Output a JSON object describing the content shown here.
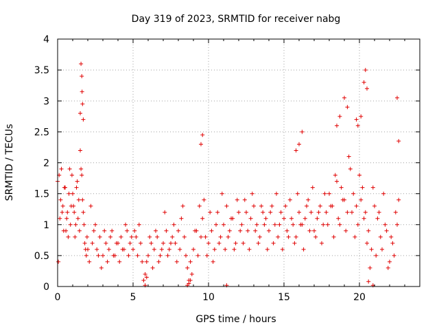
{
  "chart_data": {
    "type": "scatter",
    "title": "Day 319 of 2023, SRMTID for receiver nabg",
    "xlabel": "GPS time / hours",
    "ylabel": "SRMTID / TECUs",
    "xlim": [
      0,
      24
    ],
    "ylim": [
      0,
      4
    ],
    "xticks": [
      "0",
      "5",
      "10",
      "15",
      "20"
    ],
    "yticks": [
      "0",
      "0.5",
      "1",
      "1.5",
      "2",
      "2.5",
      "3",
      "3.5",
      "4"
    ],
    "grid": true,
    "marker": "+",
    "color": "#e00000",
    "x": [
      0.0,
      0.1,
      0.2,
      0.3,
      0.4,
      0.5,
      0.6,
      0.7,
      0.8,
      0.9,
      1.0,
      1.1,
      1.2,
      1.3,
      1.4,
      1.5,
      1.6,
      1.7,
      1.8,
      1.9,
      2.0,
      2.2,
      2.4,
      2.6,
      2.8,
      3.0,
      3.2,
      3.4,
      3.6,
      3.8,
      4.0,
      4.2,
      4.4,
      4.6,
      4.8,
      5.0,
      5.2,
      5.4,
      5.6,
      5.8,
      6.0,
      6.2,
      6.4,
      6.6,
      6.8,
      7.0,
      7.2,
      7.4,
      7.6,
      7.8,
      8.0,
      8.2,
      8.4,
      8.6,
      8.8,
      9.0,
      9.2,
      9.4,
      9.6,
      9.8,
      10.0,
      10.2,
      10.4,
      10.6,
      10.8,
      11.0,
      11.2,
      11.4,
      11.6,
      11.8,
      12.0,
      12.2,
      12.4,
      12.6,
      12.8,
      13.0,
      13.2,
      13.4,
      13.6,
      13.8,
      14.0,
      14.2,
      14.4,
      14.6,
      14.8,
      15.0,
      15.2,
      15.4,
      15.6,
      15.8,
      16.0,
      16.2,
      16.4,
      16.6,
      16.8,
      17.0,
      17.2,
      17.4,
      17.6,
      17.8,
      18.0,
      18.2,
      18.4,
      18.6,
      18.8,
      19.0,
      19.2,
      19.4,
      19.6,
      19.8,
      20.0,
      20.2,
      20.4,
      20.6,
      20.8,
      21.0,
      21.2,
      21.4,
      21.6,
      21.8,
      22.0,
      22.2,
      22.4,
      22.6,
      0.05,
      0.15,
      0.25,
      0.35,
      0.45,
      0.55,
      0.65,
      0.75,
      0.85,
      0.95,
      1.05,
      1.15,
      1.25,
      1.35,
      1.45,
      1.55,
      1.65,
      1.75,
      1.85,
      1.95,
      2.1,
      2.3,
      2.5,
      2.7,
      2.9,
      3.1,
      3.3,
      3.5,
      3.7,
      3.9,
      4.1,
      4.3,
      4.5,
      4.7,
      4.9,
      5.1,
      5.3,
      5.5,
      5.7,
      5.9,
      6.1,
      6.3,
      6.5,
      6.7,
      6.9,
      7.1,
      7.3,
      7.5,
      7.7,
      7.9,
      8.1,
      8.3,
      8.5,
      8.7,
      8.9,
      9.1,
      9.3,
      9.5,
      9.7,
      9.9,
      10.1,
      10.3,
      10.5,
      10.7,
      10.9,
      11.1,
      11.3,
      11.5,
      11.7,
      11.9,
      12.1,
      12.3,
      12.5,
      12.7,
      12.9,
      13.1,
      13.3,
      13.5,
      13.7,
      13.9,
      14.1,
      14.3,
      14.5,
      14.7,
      14.9,
      15.1,
      15.3,
      15.5,
      15.7,
      15.9,
      16.1,
      16.3,
      16.5,
      16.7,
      16.9,
      17.1,
      17.3,
      17.5,
      17.7,
      17.9,
      18.1,
      18.3,
      18.5,
      18.7,
      18.9,
      19.1,
      19.3,
      19.5,
      19.7,
      19.9,
      20.1,
      20.3,
      20.5,
      20.7,
      20.9,
      21.1,
      21.3,
      21.5,
      21.7,
      21.9,
      22.1,
      22.3,
      22.5,
      1.5,
      1.55,
      1.6,
      1.62,
      1.65,
      1.7,
      9.5,
      9.6,
      15.8,
      16.0,
      16.2,
      18.5,
      18.7,
      19.0,
      19.2,
      19.8,
      19.9,
      20.1,
      20.3,
      20.4,
      20.5,
      22.5,
      22.6,
      8.6,
      8.7,
      8.8,
      11.2,
      20.6,
      20.9,
      5.8,
      5.9
    ],
    "y": [
      1.7,
      1.8,
      1.4,
      1.2,
      0.9,
      1.6,
      1.1,
      0.8,
      1.9,
      1.3,
      1.5,
      1.2,
      1.0,
      1.7,
      1.4,
      2.2,
      1.8,
      1.2,
      0.7,
      0.5,
      0.6,
      1.3,
      0.9,
      0.6,
      0.8,
      0.5,
      0.7,
      0.6,
      0.9,
      0.5,
      0.7,
      0.8,
      0.6,
      0.9,
      0.7,
      0.6,
      0.8,
      1.0,
      0.4,
      0.2,
      0.5,
      0.7,
      0.6,
      0.8,
      0.5,
      0.7,
      0.9,
      0.6,
      0.8,
      0.7,
      0.9,
      1.1,
      0.8,
      0.3,
      0.4,
      0.6,
      0.9,
      1.3,
      1.1,
      0.8,
      0.7,
      0.9,
      0.6,
      1.2,
      0.8,
      1.0,
      1.3,
      0.9,
      1.1,
      0.7,
      1.2,
      1.0,
      1.4,
      0.9,
      1.1,
      1.3,
      1.0,
      0.8,
      1.2,
      1.1,
      0.9,
      1.3,
      1.0,
      0.8,
      1.2,
      1.1,
      0.9,
      1.4,
      1.0,
      0.8,
      1.2,
      1.0,
      1.1,
      1.4,
      1.2,
      0.9,
      1.1,
      1.3,
      1.0,
      1.2,
      1.5,
      1.3,
      1.8,
      1.1,
      1.6,
      1.4,
      1.2,
      1.9,
      1.5,
      1.3,
      1.8,
      1.6,
      1.2,
      0.9,
      0.6,
      1.3,
      1.1,
      0.8,
      1.5,
      0.9,
      0.4,
      0.7,
      1.2,
      1.4,
      0.4,
      1.1,
      1.9,
      1.3,
      1.6,
      0.9,
      1.2,
      1.5,
      1.0,
      1.8,
      1.3,
      0.8,
      1.6,
      1.1,
      0.9,
      1.9,
      1.4,
      1.0,
      0.6,
      0.8,
      0.4,
      0.7,
      1.0,
      0.5,
      0.3,
      0.9,
      0.4,
      0.8,
      0.5,
      0.7,
      0.4,
      0.6,
      1.0,
      0.5,
      0.8,
      0.9,
      0.5,
      0.7,
      0.1,
      0.4,
      0.8,
      0.3,
      0.9,
      0.4,
      0.6,
      1.2,
      0.5,
      0.7,
      1.0,
      0.4,
      0.6,
      1.3,
      0.5,
      0.1,
      0.2,
      0.9,
      0.5,
      0.8,
      1.4,
      0.5,
      1.2,
      0.4,
      1.0,
      0.7,
      1.5,
      0.6,
      0.8,
      1.1,
      0.6,
      1.4,
      0.9,
      0.7,
      1.2,
      0.6,
      1.5,
      0.9,
      0.7,
      1.3,
      1.0,
      0.6,
      1.2,
      0.7,
      1.5,
      1.0,
      0.6,
      1.3,
      0.8,
      1.1,
      0.7,
      1.5,
      1.0,
      0.6,
      1.3,
      0.9,
      1.6,
      0.8,
      1.2,
      0.7,
      1.5,
      1.0,
      1.3,
      0.8,
      1.7,
      1.0,
      1.4,
      0.9,
      2.1,
      1.2,
      0.8,
      1.0,
      1.4,
      1.1,
      0.7,
      0.3,
      1.6,
      0.5,
      1.2,
      0.6,
      1.0,
      0.3,
      0.8,
      0.5,
      1.0,
      2.8,
      3.6,
      3.4,
      3.15,
      2.95,
      2.7,
      2.3,
      2.45,
      2.2,
      2.3,
      2.5,
      2.6,
      2.75,
      3.05,
      2.9,
      2.7,
      2.6,
      2.75,
      3.3,
      3.5,
      3.2,
      3.05,
      2.35,
      0.02,
      0.05,
      0.1,
      0.02,
      0.08,
      0.02,
      0.02,
      0.15
    ]
  }
}
